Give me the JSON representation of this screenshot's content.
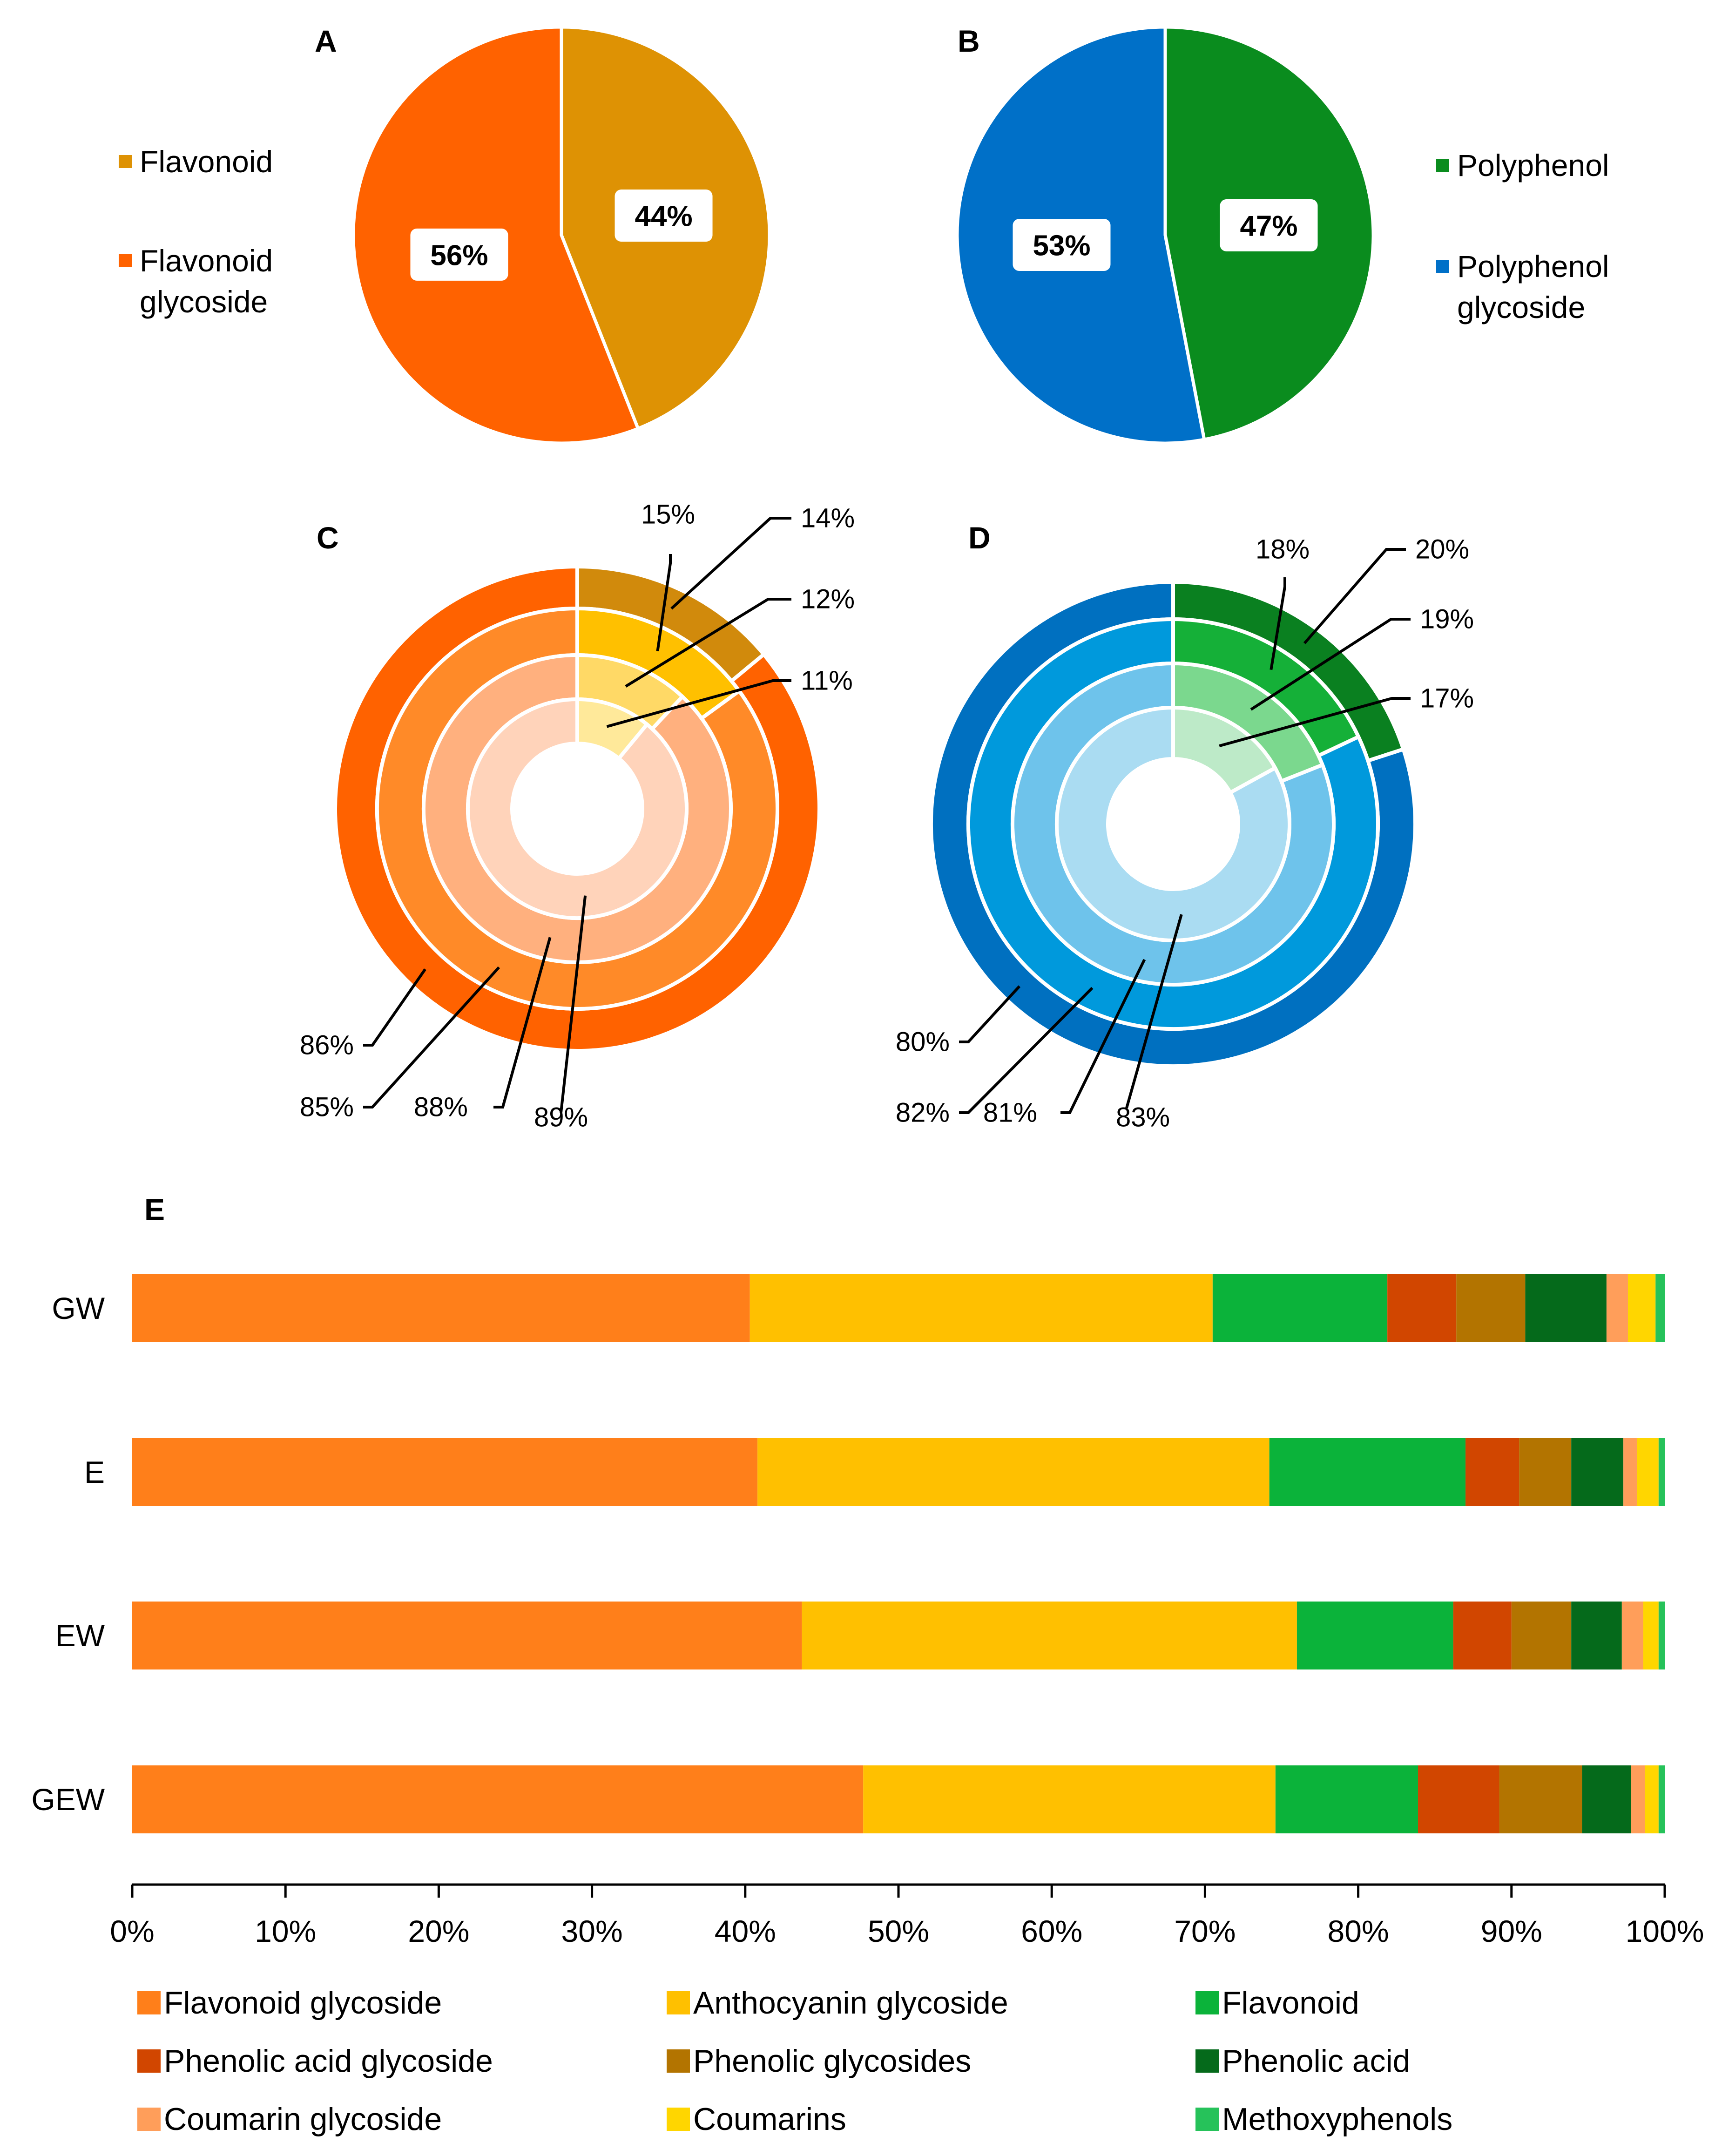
{
  "chart_data": [
    {
      "panel": "A",
      "type": "pie",
      "title": "A",
      "legend_position": "left",
      "slices": [
        {
          "label": "Flavonoid",
          "value": 44,
          "value_label": "44%",
          "color": "#DE9204"
        },
        {
          "label": "Flavonoid glycoside",
          "value": 56,
          "value_label": "56%",
          "color": "#FF6200"
        }
      ]
    },
    {
      "panel": "B",
      "type": "pie",
      "title": "B",
      "legend_position": "right",
      "slices": [
        {
          "label": "Polyphenol",
          "value": 47,
          "value_label": "47%",
          "color": "#0A8C1E"
        },
        {
          "label": "Polyphenol glycoside",
          "value": 53,
          "value_label": "53%",
          "color": "#0070C8"
        }
      ]
    },
    {
      "panel": "C",
      "type": "pie",
      "subtype": "nested-donut",
      "title": "C",
      "rings": [
        {
          "outer_value": 14,
          "outer_label": "14%",
          "glycoside_value": 86,
          "glycoside_label": "86%",
          "outer_color": "#D18A0C",
          "glycoside_color": "#FF6200"
        },
        {
          "outer_value": 15,
          "outer_label": "15%",
          "glycoside_value": 85,
          "glycoside_label": "85%",
          "outer_color": "#FFC000",
          "glycoside_color": "#FF8A28"
        },
        {
          "outer_value": 12,
          "outer_label": "12%",
          "glycoside_value": 88,
          "glycoside_label": "88%",
          "outer_color": "#FFD966",
          "glycoside_color": "#FFB07E"
        },
        {
          "outer_value": 11,
          "outer_label": "11%",
          "glycoside_value": 89,
          "glycoside_label": "89%",
          "outer_color": "#FFE99A",
          "glycoside_color": "#FFD3BA"
        }
      ]
    },
    {
      "panel": "D",
      "type": "pie",
      "subtype": "nested-donut",
      "title": "D",
      "rings": [
        {
          "outer_value": 20,
          "outer_label": "20%",
          "glycoside_value": 80,
          "glycoside_label": "80%",
          "outer_color": "#0A8020",
          "glycoside_color": "#0070C0"
        },
        {
          "outer_value": 18,
          "outer_label": "18%",
          "glycoside_value": 82,
          "glycoside_label": "82%",
          "outer_color": "#15B038",
          "glycoside_color": "#0099DC"
        },
        {
          "outer_value": 19,
          "outer_label": "19%",
          "glycoside_value": 81,
          "glycoside_label": "81%",
          "outer_color": "#7BD88E",
          "glycoside_color": "#6EC3EB"
        },
        {
          "outer_value": 17,
          "outer_label": "17%",
          "glycoside_value": 83,
          "glycoside_label": "83%",
          "outer_color": "#BDEAC8",
          "glycoside_color": "#AADCF2"
        }
      ]
    },
    {
      "panel": "E",
      "type": "bar",
      "subtype": "stacked-horizontal-100",
      "title": "E",
      "categories": [
        "GW",
        "E",
        "EW",
        "GEW"
      ],
      "xlim": [
        0,
        100
      ],
      "xticks": [
        "0%",
        "10%",
        "20%",
        "30%",
        "40%",
        "50%",
        "60%",
        "70%",
        "80%",
        "90%",
        "100%"
      ],
      "legend_position": "bottom",
      "series": [
        {
          "name": "Flavonoid glycoside",
          "color": "#FF7F1A",
          "values": [
            40.3,
            40.8,
            43.7,
            47.7
          ]
        },
        {
          "name": "Anthocyanin glycoside",
          "color": "#FFC000",
          "values": [
            30.2,
            33.4,
            32.3,
            26.9
          ]
        },
        {
          "name": "Flavonoid",
          "color": "#0BB33A",
          "values": [
            11.4,
            12.8,
            10.2,
            9.3
          ]
        },
        {
          "name": "Phenolic acid glycoside",
          "color": "#D14600",
          "values": [
            4.5,
            3.5,
            3.8,
            5.3
          ]
        },
        {
          "name": "Phenolic glycosides",
          "color": "#B37400",
          "values": [
            4.5,
            3.4,
            3.9,
            5.4
          ]
        },
        {
          "name": "Phenolic acid",
          "color": "#056A1B",
          "values": [
            5.3,
            3.4,
            3.3,
            3.2
          ]
        },
        {
          "name": "Coumarin glycoside",
          "color": "#FF9E5A",
          "values": [
            1.4,
            0.9,
            1.4,
            0.9
          ]
        },
        {
          "name": "Coumarins",
          "color": "#FFD600",
          "values": [
            1.8,
            1.4,
            1.0,
            0.9
          ]
        },
        {
          "name": "Methoxyphenols",
          "color": "#26C25A",
          "values": [
            0.6,
            0.4,
            0.4,
            0.4
          ]
        }
      ]
    }
  ]
}
